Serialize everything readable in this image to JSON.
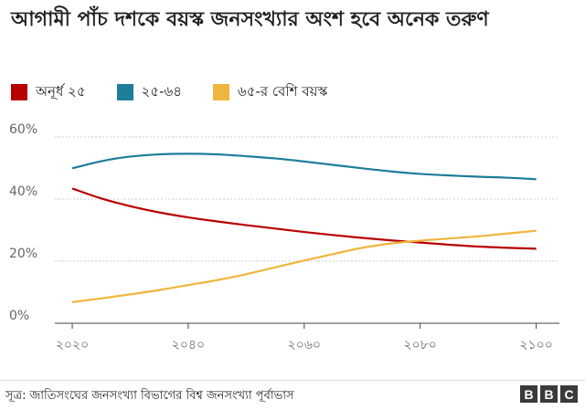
{
  "chart_data": {
    "type": "line",
    "title": "আগামী পাঁচ দশকে বয়স্ক জনসংখ্যার অংশ হবে অনেক তরুণ",
    "source": "সূত্র: জাতিসংঘের জনসংখ্যা বিভাগের বিশ্ব জনসংখ্যা পূর্বাভাস",
    "x_ticks": [
      {
        "value": 2020,
        "label": "২০২০"
      },
      {
        "value": 2040,
        "label": "২০৪০"
      },
      {
        "value": 2060,
        "label": "২০৬০"
      },
      {
        "value": 2080,
        "label": "২০৮০"
      },
      {
        "value": 2100,
        "label": "২১০০"
      }
    ],
    "y_ticks": [
      {
        "value": 0,
        "label": "0%"
      },
      {
        "value": 20,
        "label": "20%"
      },
      {
        "value": 40,
        "label": "40%"
      },
      {
        "value": 60,
        "label": "60%"
      }
    ],
    "xlim": [
      2017,
      2104
    ],
    "ylim": [
      0,
      60
    ],
    "grid": true,
    "legend_position": "top-left",
    "x": [
      2020,
      2025,
      2030,
      2035,
      2040,
      2045,
      2050,
      2055,
      2060,
      2065,
      2070,
      2075,
      2080,
      2085,
      2090,
      2095,
      2100
    ],
    "series": [
      {
        "name": "অনূর্ধ ২৫",
        "color": "#b80000",
        "values": [
          43.4,
          40.2,
          37.7,
          35.7,
          34.1,
          32.8,
          31.6,
          30.5,
          29.4,
          28.4,
          27.5,
          26.7,
          26.0,
          25.3,
          24.7,
          24.3,
          24.0
        ]
      },
      {
        "name": "২৫-৬৪",
        "color": "#1d7d9b",
        "values": [
          49.9,
          52.2,
          53.7,
          54.4,
          54.6,
          54.4,
          53.8,
          53.1,
          52.1,
          51.0,
          49.9,
          48.9,
          48.1,
          47.6,
          47.2,
          46.9,
          46.4
        ]
      },
      {
        "name": "৬৫-র বেশি বয়স্ক",
        "color": "#f0b53c",
        "values": [
          6.8,
          8.0,
          9.3,
          10.7,
          12.3,
          13.9,
          15.8,
          18.0,
          20.2,
          22.3,
          24.3,
          25.7,
          26.6,
          27.3,
          28.0,
          28.9,
          29.8
        ]
      }
    ]
  }
}
